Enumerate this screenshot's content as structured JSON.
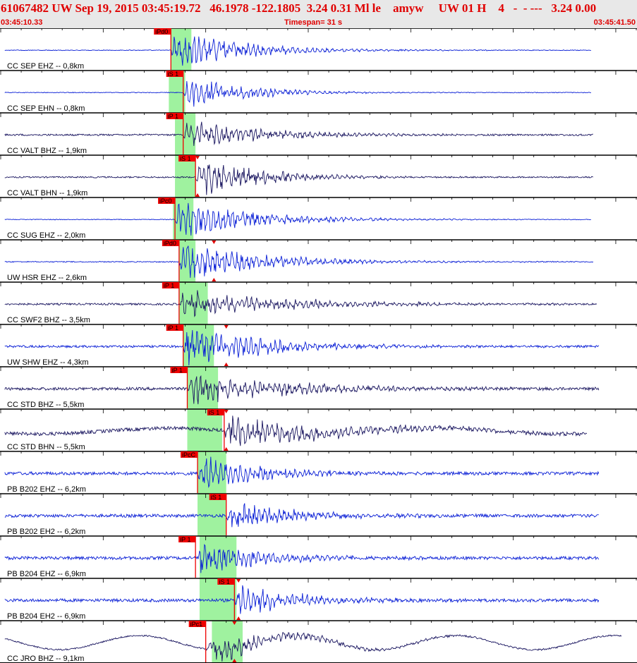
{
  "header": {
    "title": "61067482 UW Sep 19, 2015 03:45:19.72   46.1978 -122.1805  3.24 0.31 Ml le    amyw     UW 01 H    4   -  - ---   3.24 0.00",
    "time_start": "03:45:10.33",
    "timespan": "Timespan=  31 s",
    "time_end": "03:45:41.50"
  },
  "colors": {
    "header_text": "#e00000",
    "pick_flag": "#ee0000",
    "pick_window": "#9ff29f",
    "trace_ehz": "#0a1fd6",
    "trace_bh": "#1a1660",
    "amp_marker": "#e00000"
  },
  "time_axis": {
    "start_s": 0,
    "end_s": 31,
    "minor_tick_s": 1,
    "major_tick_s": 5
  },
  "traces": [
    {
      "label": "CC SEP EHZ -- 0,8km",
      "pick": "iPd0",
      "pick_s": 8.3,
      "win_s": [
        8.3,
        9.3
      ],
      "amp_s": null,
      "color": "#0a1fd6",
      "noise": 0.5,
      "amp": 24,
      "decay": 3.5,
      "trace_end_s": 28.8
    },
    {
      "label": "CC SEP EHN -- 0,8km",
      "pick": "iS 1",
      "pick_s": 8.9,
      "win_s": [
        8.2,
        9.0
      ],
      "amp_s": null,
      "color": "#0a1fd6",
      "noise": 0.5,
      "amp": 20,
      "decay": 3.0,
      "trace_end_s": 28.8
    },
    {
      "label": "CC VALT BHZ -- 1,9km",
      "pick": "iP 1",
      "pick_s": 8.9,
      "win_s": [
        8.5,
        9.5
      ],
      "amp_s": null,
      "color": "#1a1660",
      "noise": 1.2,
      "amp": 18,
      "decay": 4.0,
      "trace_end_s": 28.9
    },
    {
      "label": "CC VALT BHN -- 1,9km",
      "pick": "iS 1",
      "pick_s": 9.5,
      "win_s": [
        8.5,
        9.5
      ],
      "amp_s": 9.6,
      "color": "#1a1660",
      "noise": 1.0,
      "amp": 26,
      "decay": 3.0,
      "trace_end_s": 28.9
    },
    {
      "label": "CC SUG EHZ -- 2,0km",
      "pick": "iPc0",
      "pick_s": 8.5,
      "win_s": [
        8.4,
        9.4
      ],
      "amp_s": null,
      "color": "#0a1fd6",
      "noise": 0.5,
      "amp": 22,
      "decay": 4.0,
      "trace_end_s": 28.8
    },
    {
      "label": "UW HSR EHZ -- 2,6km",
      "pick": "iPd0",
      "pick_s": 8.7,
      "win_s": [
        8.7,
        9.5
      ],
      "amp_s": 10.4,
      "color": "#0a1fd6",
      "noise": 0.7,
      "amp": 24,
      "decay": 4.0,
      "trace_end_s": 28.9
    },
    {
      "label": "CC SWF2 BHZ -- 3,5km",
      "pick": "iP 1",
      "pick_s": 8.7,
      "win_s": [
        8.7,
        10.1
      ],
      "amp_s": null,
      "color": "#1a1660",
      "noise": 1.3,
      "amp": 18,
      "decay": 5.0,
      "trace_end_s": 29.1
    },
    {
      "label": "UW SHW EHZ -- 4,3km",
      "pick": "iP 1",
      "pick_s": 8.9,
      "win_s": [
        8.9,
        10.4
      ],
      "amp_s": 11.0,
      "color": "#0a1fd6",
      "noise": 1.6,
      "amp": 24,
      "decay": 4.0,
      "trace_end_s": 29.2
    },
    {
      "label": "CC STD BHZ -- 5,5km",
      "pick": "iP 1",
      "pick_s": 9.1,
      "win_s": [
        9.1,
        10.6
      ],
      "amp_s": null,
      "color": "#1a1660",
      "noise": 2.0,
      "amp": 20,
      "decay": 5.0,
      "trace_end_s": 29.2
    },
    {
      "label": "CC STD BHN -- 5,5km",
      "pick": "iS 1",
      "pick_s": 10.9,
      "win_s": [
        9.1,
        10.8
      ],
      "amp_s": 11.0,
      "color": "#1a1660",
      "noise": 2.5,
      "amp": 20,
      "decay": 5.0,
      "trace_end_s": 28.6
    },
    {
      "label": "PB B202 EHZ -- 6,2km",
      "pick": "iPcC",
      "pick_s": 9.6,
      "win_s": [
        9.6,
        11.0
      ],
      "amp_s": null,
      "color": "#0a1fd6",
      "noise": 2.2,
      "amp": 22,
      "decay": 3.0,
      "trace_end_s": 29.2
    },
    {
      "label": "PB B202 EH2 -- 6,2km",
      "pick": "iS 1",
      "pick_s": 11.0,
      "win_s": [
        9.6,
        11.0
      ],
      "amp_s": null,
      "color": "#0a1fd6",
      "noise": 2.2,
      "amp": 20,
      "decay": 3.0,
      "trace_end_s": 29.2
    },
    {
      "label": "PB B204 EHZ -- 6,9km",
      "pick": "iP 1",
      "pick_s": 9.5,
      "win_s": [
        9.7,
        11.5
      ],
      "amp_s": null,
      "color": "#0a1fd6",
      "noise": 2.2,
      "amp": 24,
      "decay": 3.0,
      "trace_end_s": 29.2
    },
    {
      "label": "PB B204 EH2 -- 6,9km",
      "pick": "iS 1",
      "pick_s": 11.4,
      "win_s": [
        9.7,
        11.5
      ],
      "amp_s": 11.6,
      "color": "#0a1fd6",
      "noise": 2.2,
      "amp": 20,
      "decay": 3.0,
      "trace_end_s": 29.2
    },
    {
      "label": "CC JRO BHZ -- 9,1km",
      "pick": "iPc1",
      "pick_s": 10.0,
      "win_s": [
        10.3,
        11.8
      ],
      "amp_s": 11.4,
      "color": "#1a1660",
      "noise": 1.0,
      "amp": 16,
      "decay": 4.0,
      "trace_end_s": 30.3
    }
  ]
}
